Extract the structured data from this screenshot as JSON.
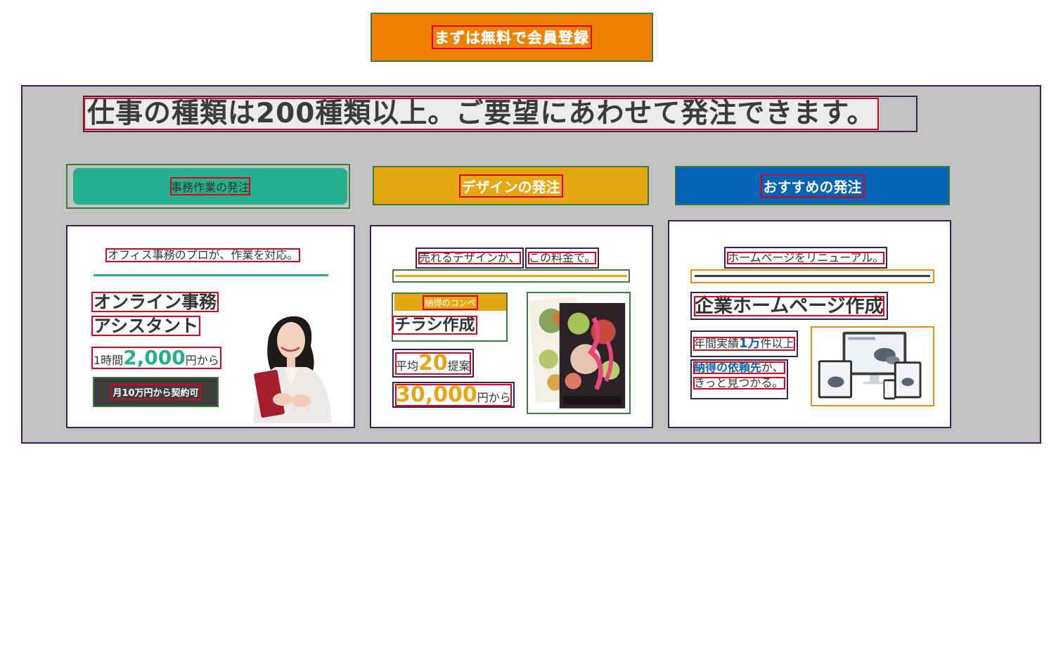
{
  "cta": {
    "label": "まずは無料で会員登録"
  },
  "headline": "仕事の種類は200種類以上。ご要望にあわせて発注できます。",
  "tabs": [
    {
      "label": "事務作業の発注",
      "color": "#24b08f"
    },
    {
      "label": "デザインの発注",
      "color": "#e6a715"
    },
    {
      "label": "おすすめの発注",
      "color": "#0563b5"
    }
  ],
  "office": {
    "lead": "オフィス事務のプロが、作業を対応。",
    "title_line1": "オンライン事務",
    "title_line2": "アシスタント",
    "price_prefix": "1時間",
    "price_value": "2,000",
    "price_suffix": "円から",
    "badge": "月10万円から契約可"
  },
  "design": {
    "lead_a": "売れるデザインが、",
    "lead_b": "この料金で。",
    "tag": "納得のコンペ",
    "title": "チラシ作成",
    "avg_prefix": "平均",
    "avg_value": "20",
    "avg_suffix": "提案",
    "price_value": "30,000",
    "price_suffix": "円から"
  },
  "recommend": {
    "lead": "ホームページをリニューアル。",
    "title": "企業ホームページ作成",
    "note_prefix": "年間実績",
    "note_value": "1万",
    "note_suffix": "件以上",
    "found_bold": "納得の依頼先",
    "found_rest": "が、",
    "found_line2": "きっと見つかる。"
  }
}
